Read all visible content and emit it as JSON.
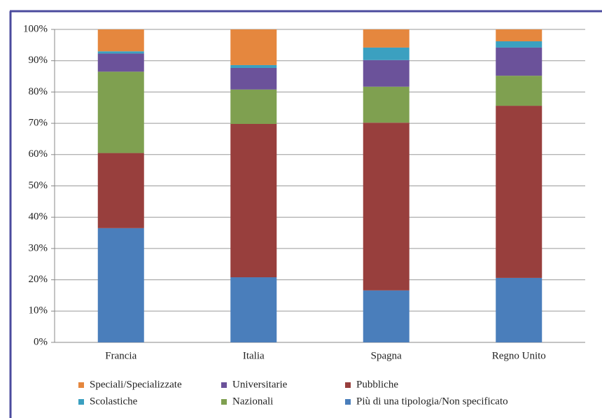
{
  "chart_data": {
    "type": "stacked_bar",
    "categories": [
      "Francia",
      "Italia",
      "Spagna",
      "Regno Unito"
    ],
    "series": [
      {
        "name": "Più di una tipologia/Non specificato",
        "color": "#4a7ebb",
        "values": [
          36.5,
          20.8,
          16.6,
          20.6
        ]
      },
      {
        "name": "Pubbliche",
        "color": "#983f3d",
        "values": [
          24,
          49,
          53.6,
          55
        ]
      },
      {
        "name": "Nazionali",
        "color": "#7fa050",
        "values": [
          26,
          11,
          11.5,
          9.6
        ]
      },
      {
        "name": "Universitarie",
        "color": "#6b529a",
        "values": [
          5.8,
          6.9,
          8.5,
          9
        ]
      },
      {
        "name": "Scolastiche",
        "color": "#3ba0c0",
        "values": [
          0.7,
          0.9,
          4,
          2
        ]
      },
      {
        "name": "Speciali/Specializzate",
        "color": "#e5873e",
        "values": [
          7,
          11.4,
          5.8,
          3.8
        ]
      }
    ],
    "ylim": [
      0,
      100
    ],
    "yticks": [
      {
        "value": 0,
        "label": "0%"
      },
      {
        "value": 10,
        "label": "10%"
      },
      {
        "value": 20,
        "label": "20%"
      },
      {
        "value": 30,
        "label": "30%"
      },
      {
        "value": 40,
        "label": "40%"
      },
      {
        "value": 50,
        "label": "50%"
      },
      {
        "value": 60,
        "label": "60%"
      },
      {
        "value": 70,
        "label": "70%"
      },
      {
        "value": 80,
        "label": "80%"
      },
      {
        "value": 90,
        "label": "90%"
      },
      {
        "value": 100,
        "label": "100%"
      }
    ],
    "grid": true
  }
}
